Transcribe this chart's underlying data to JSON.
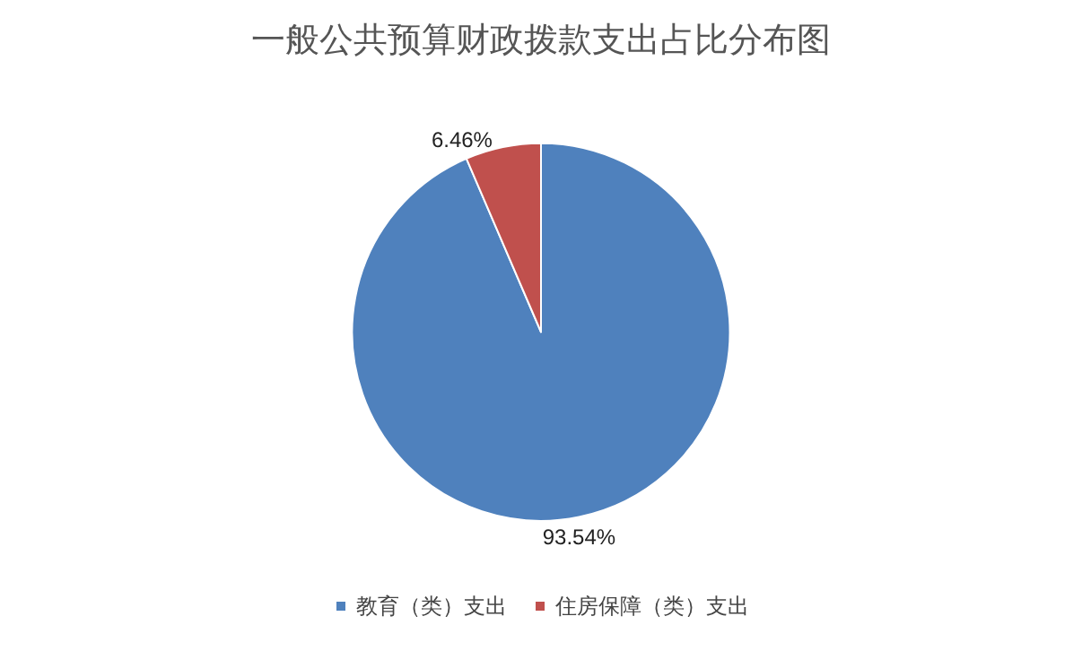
{
  "chart_data": {
    "type": "pie",
    "title": "一般公共预算财政拨款支出占比分布图",
    "categories": [
      "教育（类）支出",
      "住房保障（类）支出"
    ],
    "values": [
      93.54,
      6.46
    ],
    "colors": [
      "#4f81bd",
      "#c0504d"
    ],
    "value_labels": [
      "93.54%",
      "6.46%"
    ],
    "legend": "bottom"
  }
}
